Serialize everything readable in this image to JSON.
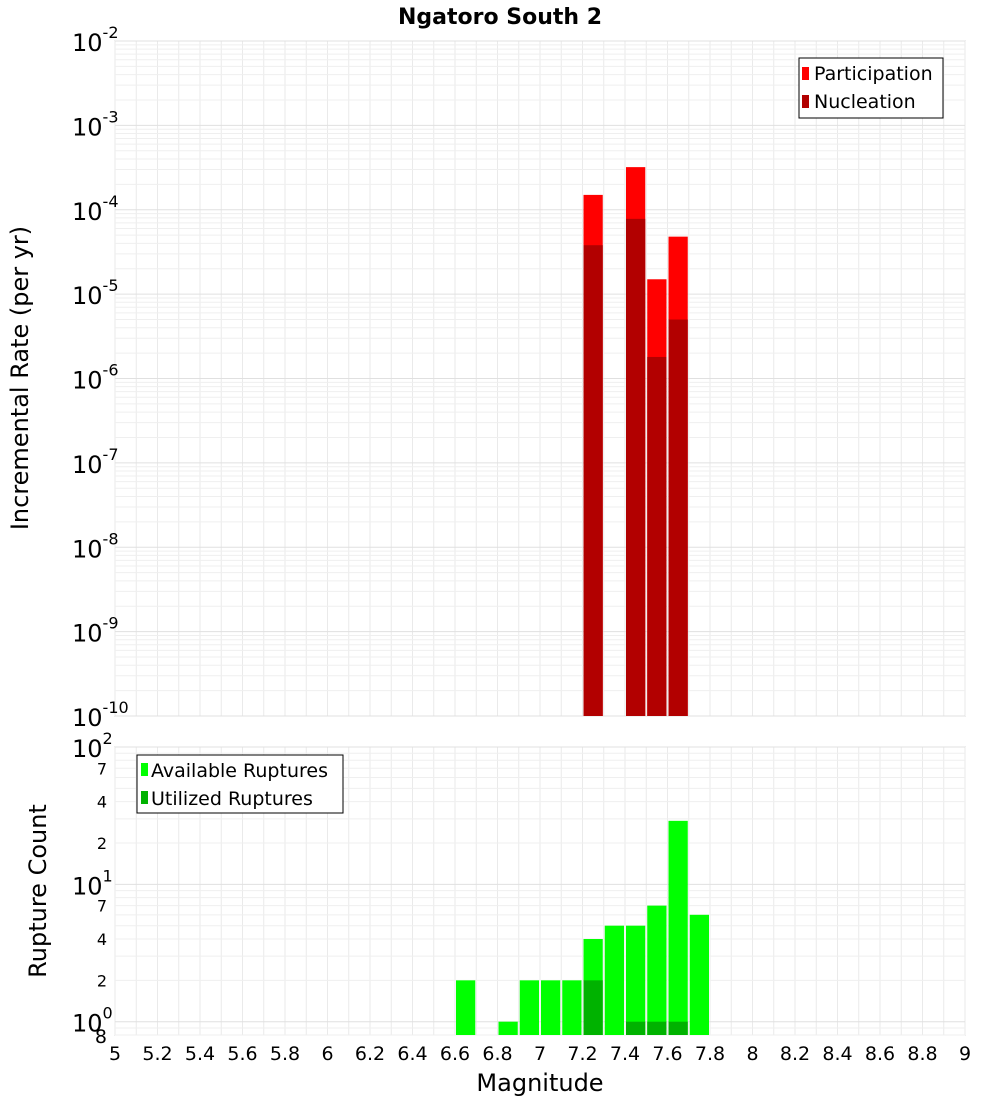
{
  "chart_data": [
    {
      "type": "bar",
      "title": "Ngatoro South 2",
      "xlabel": "",
      "ylabel": "Incremental Rate (per yr)",
      "yscale": "log",
      "ylim": [
        1e-10,
        0.01
      ],
      "xlim": [
        5,
        9
      ],
      "bar_width": 0.1,
      "grid": true,
      "legend": "top-right",
      "y_ticks": [
        {
          "base": "10",
          "exp": "-10"
        },
        {
          "base": "10",
          "exp": "-9"
        },
        {
          "base": "10",
          "exp": "-8"
        },
        {
          "base": "10",
          "exp": "-7"
        },
        {
          "base": "10",
          "exp": "-6"
        },
        {
          "base": "10",
          "exp": "-5"
        },
        {
          "base": "10",
          "exp": "-4"
        },
        {
          "base": "10",
          "exp": "-3"
        },
        {
          "base": "10",
          "exp": "-2"
        }
      ],
      "series": [
        {
          "name": "Participation",
          "color": "#ff0000",
          "x": [
            7.25,
            7.45,
            7.55,
            7.65
          ],
          "values": [
            0.00015,
            0.00032,
            1.5e-05,
            4.8e-05
          ]
        },
        {
          "name": "Nucleation",
          "color": "#b20000",
          "x": [
            7.25,
            7.45,
            7.55,
            7.65
          ],
          "values": [
            3.8e-05,
            7.8e-05,
            1.8e-06,
            5e-06
          ]
        }
      ]
    },
    {
      "type": "bar",
      "xlabel": "Magnitude",
      "ylabel": "Rupture Count",
      "yscale": "log",
      "ylim": [
        0.8,
        100
      ],
      "xlim": [
        5,
        9
      ],
      "bar_width": 0.1,
      "grid": true,
      "legend": "top-left",
      "x_ticks": [
        "5",
        "5.2",
        "5.4",
        "5.6",
        "5.8",
        "6",
        "6.2",
        "6.4",
        "6.6",
        "6.8",
        "7",
        "7.2",
        "7.4",
        "7.6",
        "7.8",
        "8",
        "8.2",
        "8.4",
        "8.6",
        "8.8",
        "9"
      ],
      "y_ticks": [
        {
          "value": 1,
          "label": "10",
          "exp": "0"
        },
        {
          "value": 2,
          "label": "2",
          "exp": ""
        },
        {
          "value": 4,
          "label": "4",
          "exp": ""
        },
        {
          "value": 7,
          "label": "7",
          "exp": ""
        },
        {
          "value": 10,
          "label": "10",
          "exp": "1"
        },
        {
          "value": 20,
          "label": "2",
          "exp": ""
        },
        {
          "value": 40,
          "label": "4",
          "exp": ""
        },
        {
          "value": 70,
          "label": "7",
          "exp": ""
        },
        {
          "value": 100,
          "label": "10",
          "exp": "2"
        }
      ],
      "y_min_label": "8",
      "series": [
        {
          "name": "Available Ruptures",
          "color": "#00ff00",
          "x": [
            6.65,
            6.85,
            6.95,
            7.05,
            7.15,
            7.25,
            7.35,
            7.45,
            7.55,
            7.65,
            7.75
          ],
          "values": [
            2,
            1,
            2,
            2,
            2,
            4,
            5,
            5,
            7,
            29,
            6
          ]
        },
        {
          "name": "Utilized Ruptures",
          "color": "#00b200",
          "x": [
            7.25,
            7.45,
            7.55,
            7.65
          ],
          "values": [
            2,
            1,
            1,
            1
          ]
        }
      ]
    }
  ]
}
